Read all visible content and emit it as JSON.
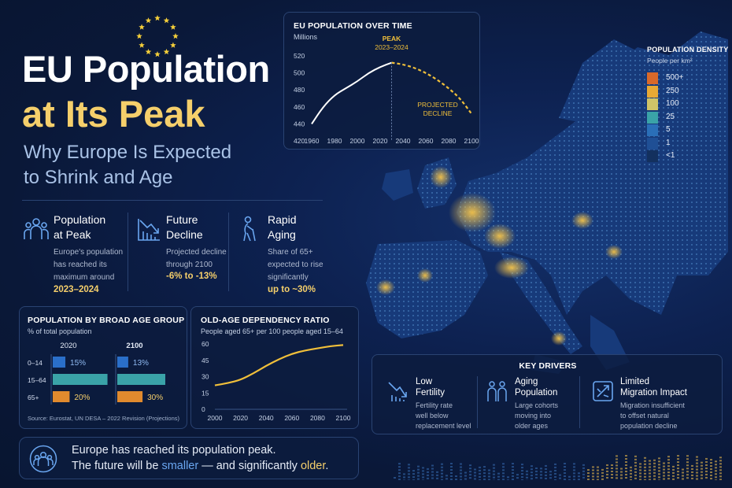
{
  "header": {
    "title_line1": "EU Population",
    "title_line2": "at Its Peak",
    "subtitle_line1": "Why Europe Is Expected",
    "subtitle_line2": "to Shrink and Age"
  },
  "stats": [
    {
      "icon": "people-group-icon",
      "title1": "Population",
      "title2": "at Peak",
      "body": [
        "Europe's population",
        "has reached its",
        "maximum around"
      ],
      "value": "2023–2024"
    },
    {
      "icon": "declining-chart-icon",
      "title1": "Future",
      "title2": "Decline",
      "body": [
        "Projected decline",
        "through 2100"
      ],
      "value": "-6% to -13%"
    },
    {
      "icon": "elderly-person-icon",
      "title1": "Rapid",
      "title2": "Aging",
      "body": [
        "Share of 65+",
        "expected to rise",
        "significantly"
      ],
      "value": "up to ~30%"
    }
  ],
  "map_legend": {
    "title": "POPULATION DENSITY",
    "subtitle": "People per km²",
    "items": [
      {
        "label": "500+",
        "color": "#d8692a"
      },
      {
        "label": "250",
        "color": "#e7a935"
      },
      {
        "label": "100",
        "color": "#cfc468"
      },
      {
        "label": "25",
        "color": "#3aa3a8"
      },
      {
        "label": "5",
        "color": "#2a6fb8"
      },
      {
        "label": "1",
        "color": "#1f4f95"
      },
      {
        "label": "<1",
        "color": "#13305e"
      }
    ]
  },
  "key_drivers": {
    "title": "KEY DRIVERS",
    "items": [
      {
        "icon": "falling-arrow-icon",
        "title1": "Low",
        "title2": "Fertility",
        "body": [
          "Fertility rate",
          "well below",
          "replacement level"
        ]
      },
      {
        "icon": "family-icon",
        "title1": "Aging",
        "title2": "Population",
        "body": [
          "Large cohorts",
          "moving into",
          "older ages"
        ]
      },
      {
        "icon": "crossing-arrows-icon",
        "title1": "Limited",
        "title2": "Migration Impact",
        "body": [
          "Migration insufficient",
          "to offset natural",
          "population decline"
        ]
      }
    ]
  },
  "footer": {
    "line1": "Europe has reached its population peak.",
    "line2_a": "The future will be ",
    "line2_b": "smaller",
    "line2_c": " — and significantly ",
    "line2_d": "older",
    "line2_e": "."
  },
  "chart_data": [
    {
      "type": "line",
      "title": "EU POPULATION OVER TIME",
      "ylabel": "Millions",
      "x": [
        1960,
        1970,
        1980,
        1990,
        2000,
        2010,
        2020,
        2030,
        2040,
        2050,
        2060,
        2070,
        2080,
        2090,
        2100
      ],
      "x_ticks": [
        1960,
        1980,
        2000,
        2020,
        2040,
        2060,
        2080,
        2100
      ],
      "y_ticks": [
        420,
        440,
        460,
        480,
        500,
        520
      ],
      "ylim": [
        420,
        520
      ],
      "series": [
        {
          "x": [
            1960,
            1970,
            1980,
            1990,
            2000,
            2010,
            2020,
            2030
          ],
          "values": [
            440,
            460,
            474,
            482,
            490,
            500,
            507,
            512
          ],
          "style": "solid",
          "color": "#ffffff"
        },
        {
          "x": [
            2030,
            2040,
            2050,
            2060,
            2070,
            2080,
            2090,
            2100
          ],
          "values": [
            512,
            510,
            506,
            500,
            492,
            482,
            470,
            452
          ],
          "style": "dashed",
          "color": "#f0bf3a"
        }
      ],
      "annotations": [
        {
          "text": "PEAK",
          "text2": "2023–2024",
          "x": 2030,
          "y": 512
        },
        {
          "text": "PROJECTED",
          "text2": "DECLINE",
          "x": 2085,
          "y": 460
        }
      ]
    },
    {
      "type": "bar",
      "title": "POPULATION BY BROAD AGE GROUP",
      "subtitle": "% of total population",
      "groups": [
        "2020",
        "2100"
      ],
      "categories": [
        "0–14",
        "15–64",
        "65+"
      ],
      "series": [
        {
          "name": "2020",
          "values": [
            15,
            65,
            20
          ],
          "labels": [
            "15%",
            "",
            "20%"
          ]
        },
        {
          "name": "2100",
          "values": [
            13,
            57,
            30
          ],
          "labels": [
            "13%",
            "",
            "30%"
          ]
        }
      ],
      "colors": [
        "#2a6fc9",
        "#3aa3a8",
        "#e08a2e"
      ],
      "source": "Source: Eurostat, UN DESA – 2022 Revision (Projections)"
    },
    {
      "type": "line",
      "title": "OLD-AGE DEPENDENCY RATIO",
      "subtitle": "People aged 65+ per 100 people aged 15–64",
      "x": [
        2000,
        2010,
        2020,
        2030,
        2040,
        2050,
        2060,
        2070,
        2080,
        2090,
        2100
      ],
      "x_ticks": [
        2000,
        2020,
        2040,
        2060,
        2080,
        2100
      ],
      "y_ticks": [
        0,
        15,
        30,
        45,
        60
      ],
      "ylim": [
        0,
        60
      ],
      "series": [
        {
          "values": [
            22,
            24,
            27,
            33,
            40,
            46,
            51,
            54,
            56,
            58,
            59
          ],
          "color": "#f0bf3a"
        }
      ]
    }
  ]
}
